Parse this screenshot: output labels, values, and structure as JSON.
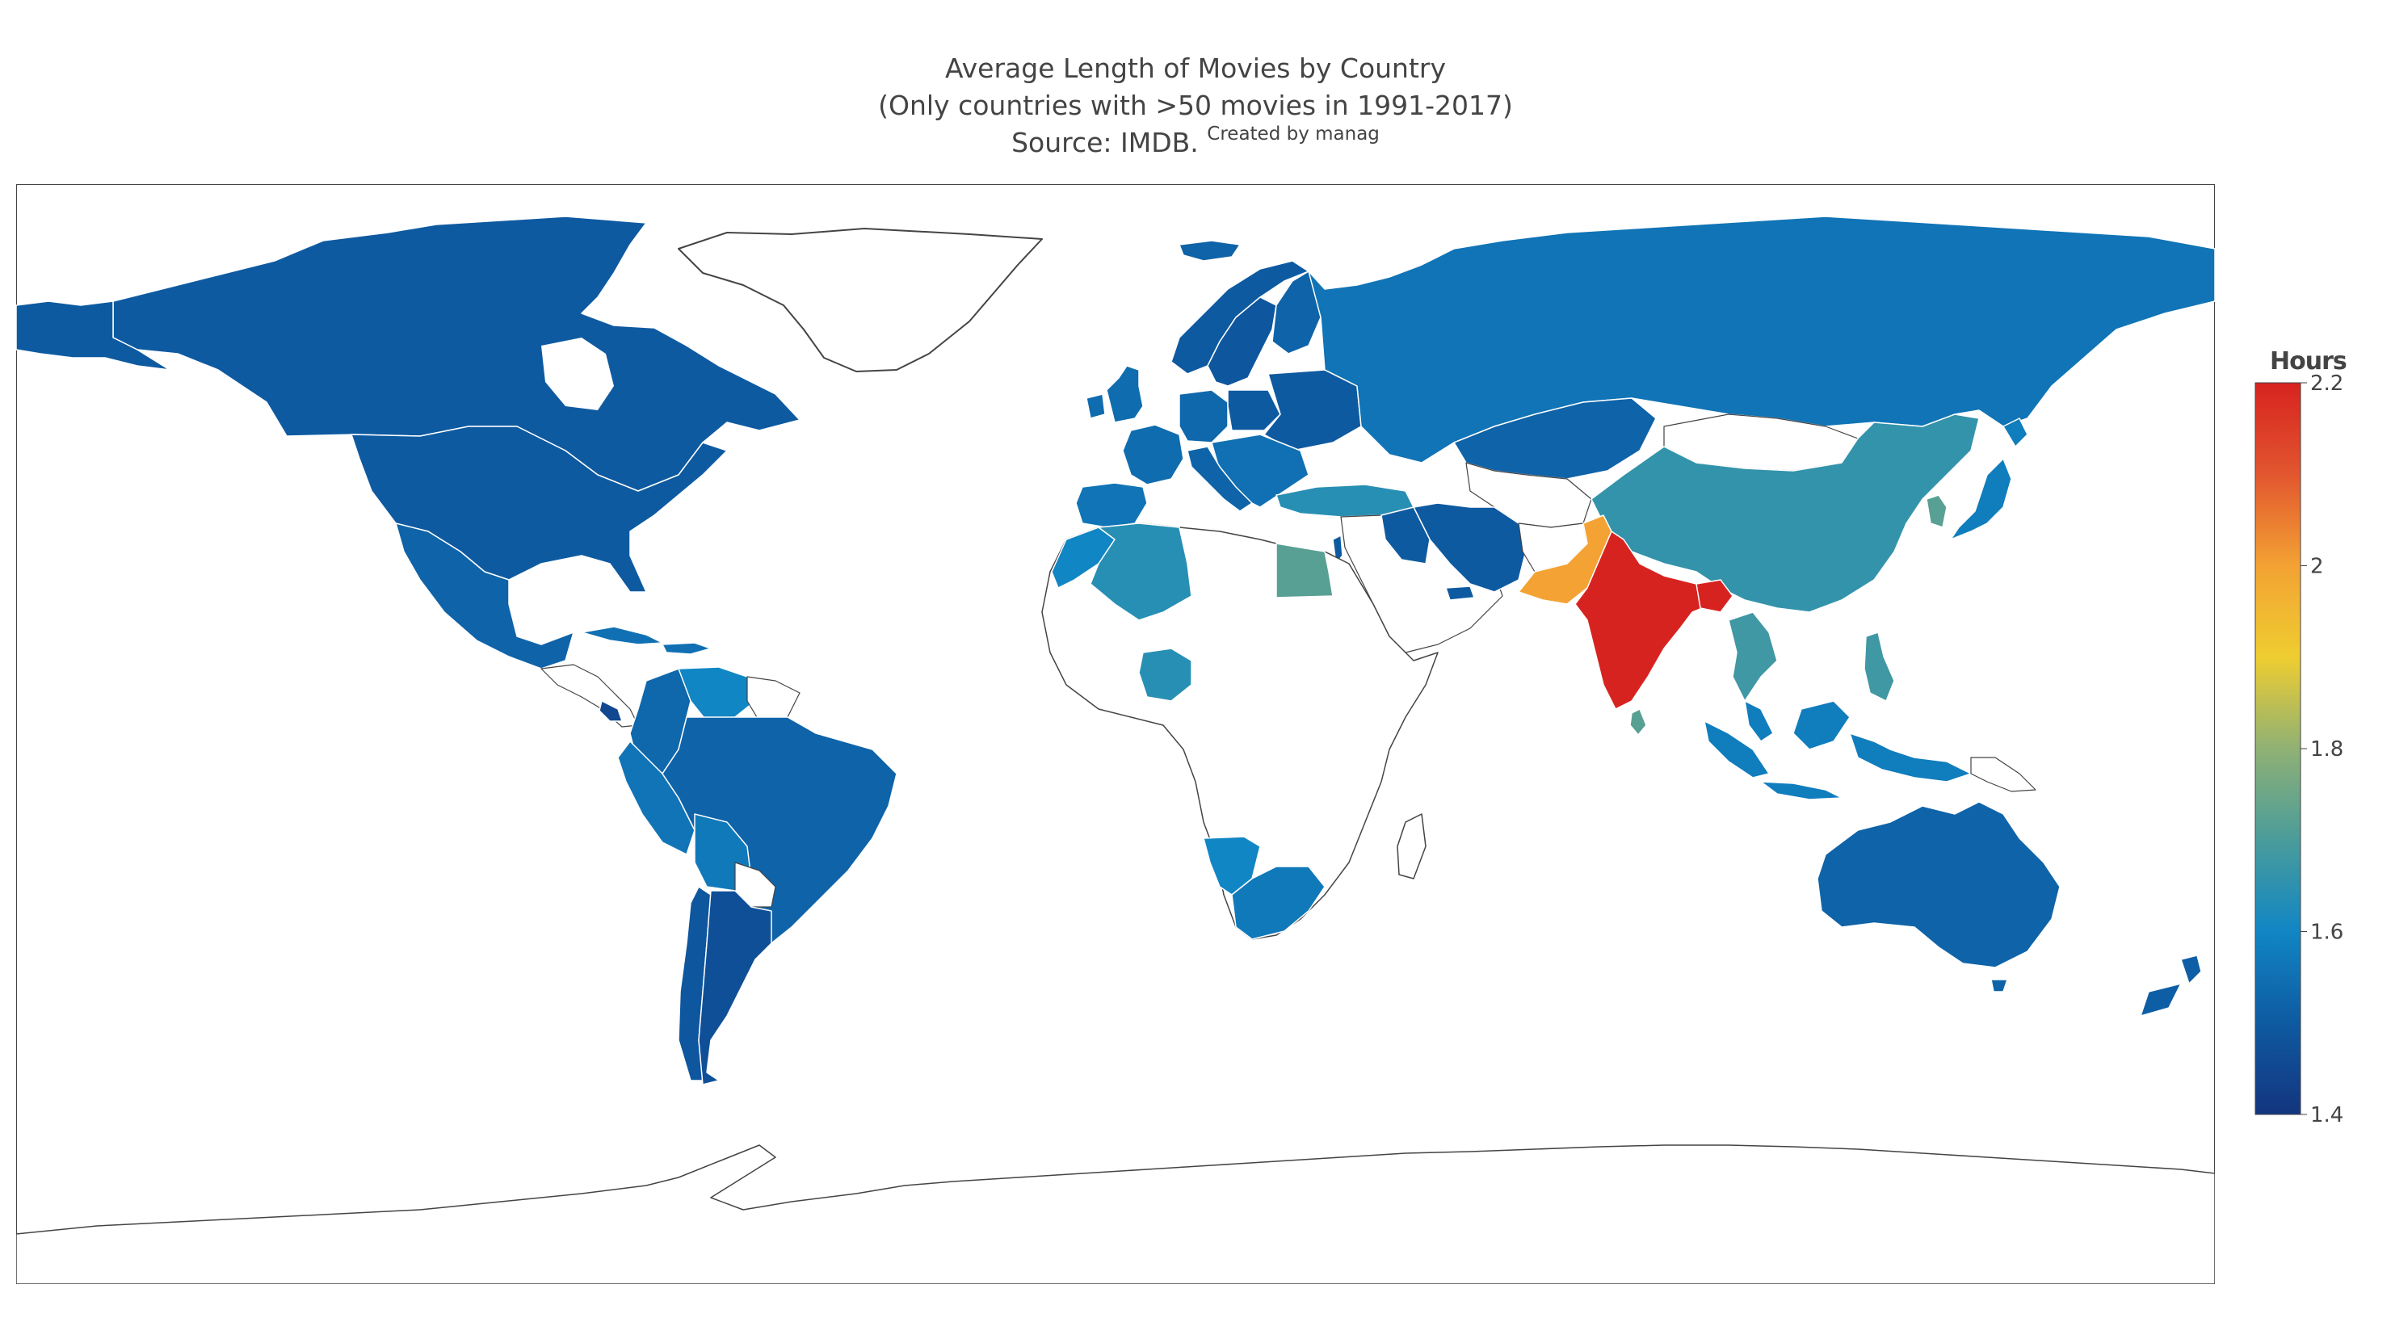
{
  "title": {
    "line1": "Average Length of Movies by Country",
    "line2": "(Only countries with >50 movies in 1991-2017)",
    "line3": "Source: IMDB.",
    "credit": "Created by manag"
  },
  "colorbar": {
    "title": "Hours",
    "range": [
      1.4,
      2.2
    ],
    "ticks": [
      "2.2",
      "2",
      "1.8",
      "1.6",
      "1.4"
    ],
    "colorscale": [
      "#13357f",
      "#0e5aa1",
      "#1186c4",
      "#4a9c9b",
      "#8fb174",
      "#efcd30",
      "#f3a233",
      "#e2562f",
      "#d7231f"
    ]
  },
  "map_data": {
    "type": "choropleth",
    "projection": "equirectangular",
    "uncolored_land": "#ffffff",
    "countries": [
      {
        "name": "India",
        "value": 2.2
      },
      {
        "name": "Pakistan",
        "value": 2.0
      },
      {
        "name": "Bangladesh",
        "value": 2.2
      },
      {
        "name": "Sri Lanka",
        "value": 1.72
      },
      {
        "name": "Egypt",
        "value": 1.72
      },
      {
        "name": "South Korea",
        "value": 1.72
      },
      {
        "name": "China",
        "value": 1.66
      },
      {
        "name": "Philippines",
        "value": 1.68
      },
      {
        "name": "Thailand",
        "value": 1.68
      },
      {
        "name": "Turkey",
        "value": 1.64
      },
      {
        "name": "Algeria",
        "value": 1.64
      },
      {
        "name": "Nigeria",
        "value": 1.64
      },
      {
        "name": "Iran",
        "value": 1.5
      },
      {
        "name": "Russia",
        "value": 1.56
      },
      {
        "name": "Kazakhstan",
        "value": 1.52
      },
      {
        "name": "Japan",
        "value": 1.58
      },
      {
        "name": "Indonesia",
        "value": 1.58
      },
      {
        "name": "Malaysia",
        "value": 1.58
      },
      {
        "name": "South Africa",
        "value": 1.57
      },
      {
        "name": "Namibia",
        "value": 1.6
      },
      {
        "name": "Venezuela",
        "value": 1.6
      },
      {
        "name": "Peru",
        "value": 1.56
      },
      {
        "name": "Bolivia",
        "value": 1.57
      },
      {
        "name": "Colombia",
        "value": 1.53
      },
      {
        "name": "Brazil",
        "value": 1.52
      },
      {
        "name": "Argentina",
        "value": 1.47
      },
      {
        "name": "Chile",
        "value": 1.49
      },
      {
        "name": "United States",
        "value": 1.5
      },
      {
        "name": "Canada",
        "value": 1.5
      },
      {
        "name": "Mexico",
        "value": 1.52
      },
      {
        "name": "Australia",
        "value": 1.52
      },
      {
        "name": "New Zealand",
        "value": 1.51
      },
      {
        "name": "United Kingdom",
        "value": 1.54
      },
      {
        "name": "France",
        "value": 1.54
      },
      {
        "name": "Spain",
        "value": 1.56
      },
      {
        "name": "Germany",
        "value": 1.53
      },
      {
        "name": "Sweden",
        "value": 1.49
      },
      {
        "name": "Norway",
        "value": 1.5
      },
      {
        "name": "Finland",
        "value": 1.52
      },
      {
        "name": "Poland",
        "value": 1.5
      },
      {
        "name": "Italy",
        "value": 1.52
      },
      {
        "name": "Greece",
        "value": 1.55
      },
      {
        "name": "Morocco",
        "value": 1.6
      },
      {
        "name": "Israel",
        "value": 1.5
      },
      {
        "name": "United Arab Emirates",
        "value": 1.5
      },
      {
        "name": "Iceland",
        "value": 1.52
      },
      {
        "name": "Cuba",
        "value": 1.55
      },
      {
        "name": "Costa Rica",
        "value": 1.45
      }
    ]
  }
}
